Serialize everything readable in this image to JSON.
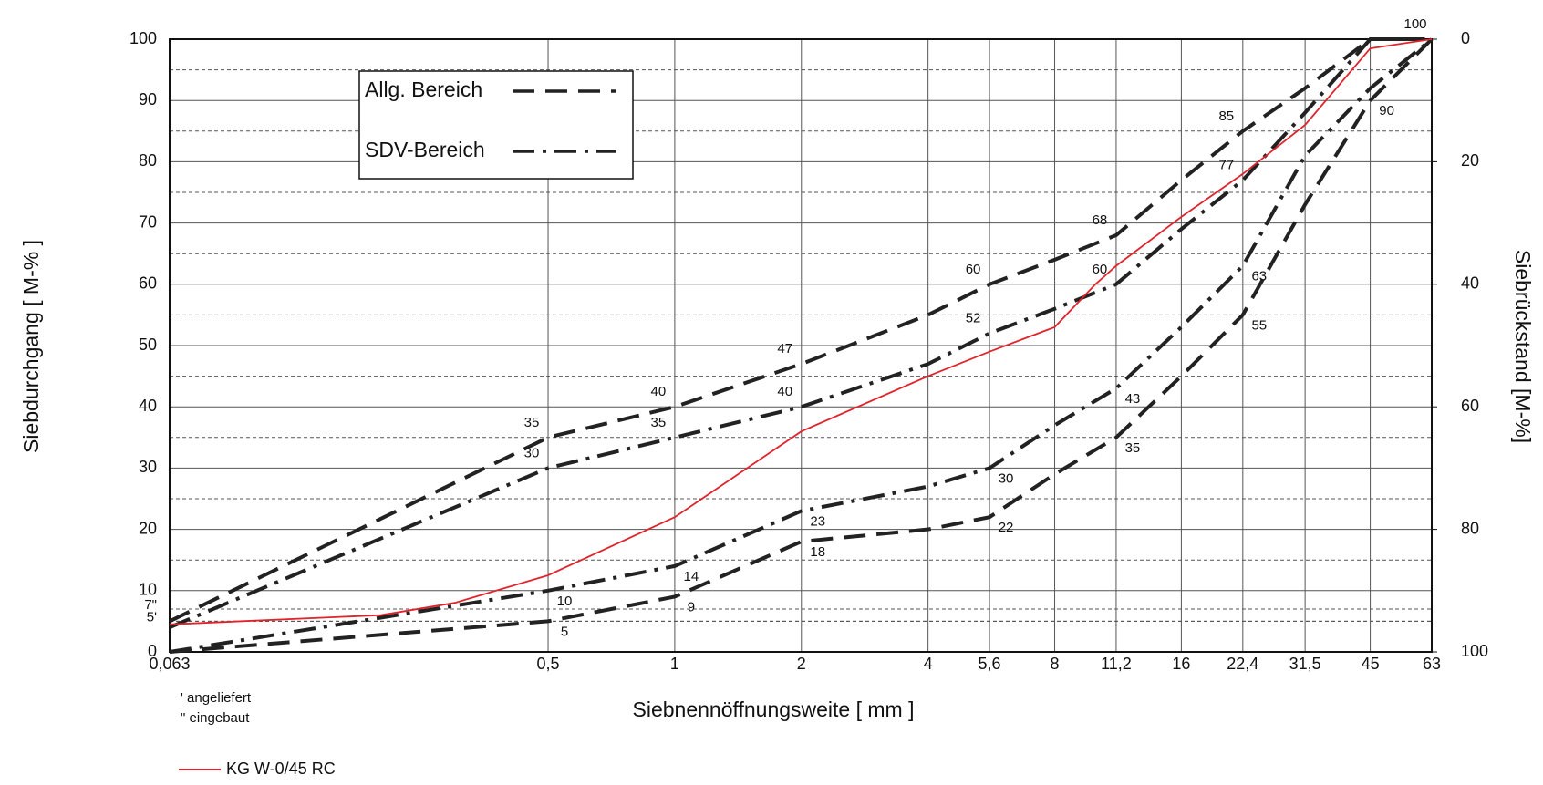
{
  "chart_data": {
    "type": "line",
    "x_label": "Siebnennöffnungsweite [ mm ]",
    "y_label": "Siebdurchgang [ M-% ]",
    "y2_label": "Siebrückstand [M-%]",
    "x_scale": "log",
    "xlim": [
      0.063,
      63
    ],
    "xticks": [
      {
        "value": 0.063,
        "label": "0,063"
      },
      {
        "value": 0.5,
        "label": "0,5"
      },
      1,
      2,
      4,
      {
        "value": 5.6,
        "label": "5,6"
      },
      8,
      {
        "value": 11.2,
        "label": "11,2"
      },
      16,
      {
        "value": 22.4,
        "label": "22,4"
      },
      {
        "value": 31.5,
        "label": "31,5"
      },
      45,
      63
    ],
    "ylim": [
      0,
      100
    ],
    "yticks": [
      0,
      {
        "value": 5,
        "label": "5'"
      },
      {
        "value": 7,
        "label": "7\""
      },
      10,
      20,
      30,
      40,
      50,
      60,
      70,
      80,
      90,
      100
    ],
    "y2lim": [
      100,
      0
    ],
    "y2ticks": [
      0,
      20,
      40,
      60,
      80,
      100
    ],
    "grid": true,
    "notes": [
      "' angeliefert",
      "\" eingebaut"
    ],
    "x": [
      0.063,
      0.5,
      1,
      2,
      4,
      5.6,
      8,
      11.2,
      16,
      22.4,
      31.5,
      45,
      63
    ],
    "bands": [
      {
        "name": "Allg. Bereich",
        "style": "dashed",
        "color": "#222222",
        "lines": [
          {
            "values": [
              5,
              35,
              40,
              47,
              55,
              60,
              64,
              68,
              77,
              85,
              92,
              100,
              100
            ],
            "value_labels": [
              null,
              "35",
              "40",
              "47",
              null,
              "60",
              null,
              "68",
              null,
              "85",
              null,
              null,
              "100"
            ]
          },
          {
            "values": [
              0,
              5,
              9,
              18,
              20,
              22,
              29,
              35,
              45,
              55,
              73,
              90,
              100
            ],
            "value_labels": [
              null,
              "5",
              "9",
              "18",
              null,
              "22",
              null,
              "35",
              null,
              "55",
              null,
              "90",
              null
            ]
          }
        ]
      },
      {
        "name": "SDV-Bereich",
        "style": "dashdot",
        "color": "#222222",
        "lines": [
          {
            "values": [
              4,
              30,
              35,
              40,
              47,
              52,
              56,
              60,
              69,
              77,
              88,
              100,
              100
            ],
            "value_labels": [
              null,
              "30",
              "35",
              "40",
              null,
              "52",
              null,
              "60",
              null,
              "77",
              null,
              null,
              null
            ]
          },
          {
            "values": [
              0,
              10,
              14,
              23,
              27,
              30,
              37,
              43,
              53,
              63,
              81,
              92,
              100
            ],
            "value_labels": [
              null,
              "10",
              "14",
              "23",
              null,
              "30",
              null,
              "43",
              null,
              "63",
              null,
              null,
              null
            ]
          }
        ]
      }
    ],
    "series": [
      {
        "name": "KG W-0/45 RC",
        "color": "#e0242c",
        "x": [
          0.063,
          0.2,
          0.3,
          0.5,
          1,
          2,
          4,
          5.6,
          8,
          10,
          11.2,
          16,
          22.4,
          31.5,
          45,
          63
        ],
        "values": [
          4.5,
          6,
          8,
          12.5,
          22,
          36,
          45,
          49,
          53,
          60,
          63,
          71,
          78,
          86,
          98.5,
          100
        ]
      }
    ]
  }
}
